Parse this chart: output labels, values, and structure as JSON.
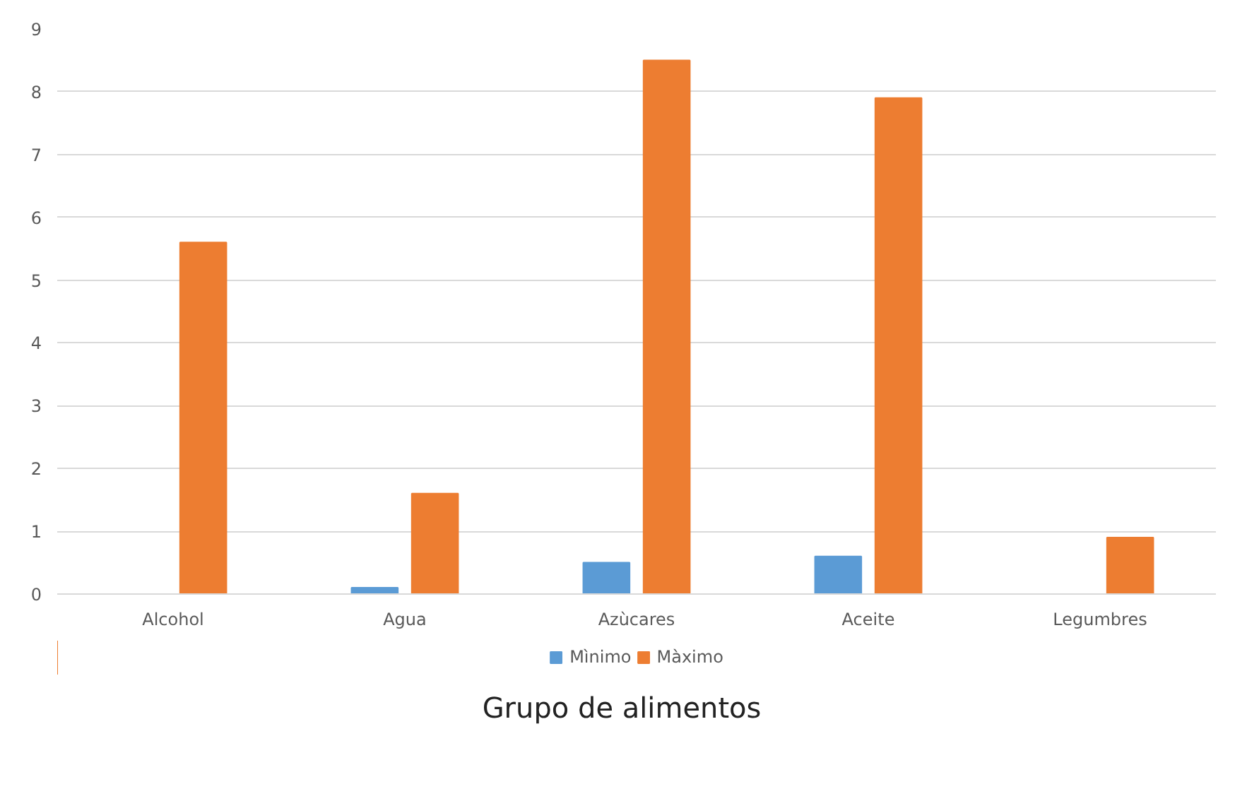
{
  "chart_data": {
    "type": "bar",
    "xlabel": "Grupo de alimentos",
    "categories": [
      "Alcohol",
      "Agua",
      "Azùcares",
      "Aceite",
      "Legumbres"
    ],
    "series": [
      {
        "name": "Mìnimo",
        "color": "#5b9bd5",
        "values": [
          0,
          0.1,
          0.5,
          0.6,
          0
        ]
      },
      {
        "name": "Màximo",
        "color": "#ed7d31",
        "values": [
          5.6,
          1.6,
          8.5,
          7.9,
          0.9
        ]
      }
    ],
    "ylim": [
      0,
      9
    ],
    "yticks": [
      0,
      1,
      2,
      3,
      4,
      5,
      6,
      7,
      8,
      9
    ],
    "grid": "y",
    "legend": "bottom"
  }
}
